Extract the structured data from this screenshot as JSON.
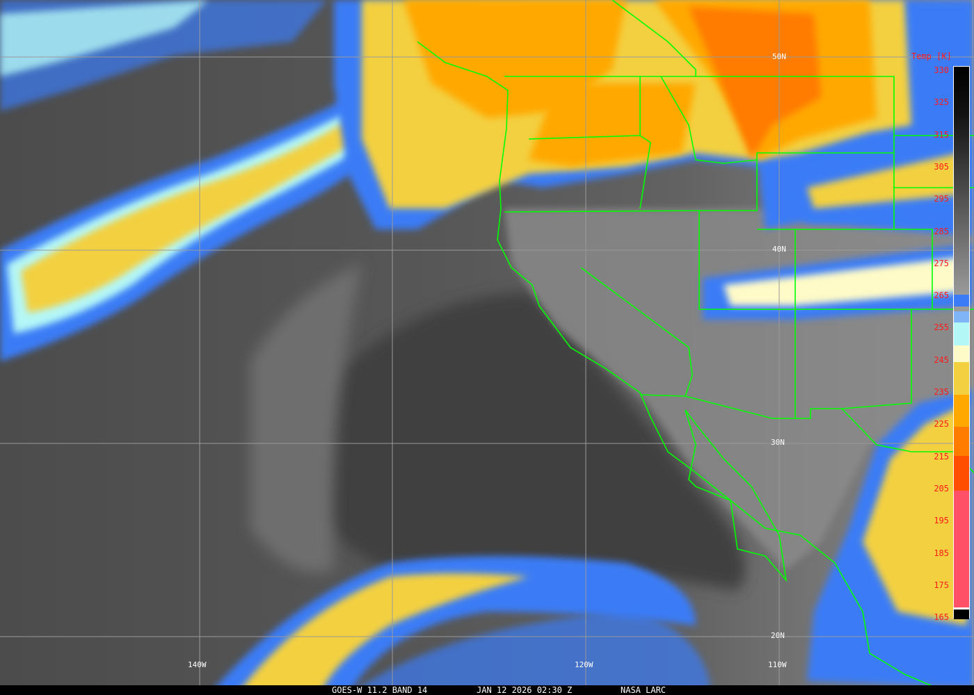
{
  "caption": {
    "satellite": "GOES-W 11.2 BAND 14",
    "datetime": "JAN 12 2026 02:30 Z",
    "source": "NASA LARC"
  },
  "grid_labels": {
    "lat": [
      "50N",
      "40N",
      "30N",
      "20N"
    ],
    "lon": [
      "140W",
      "120W",
      "110W"
    ]
  },
  "colorbar": {
    "units": "Temp [K]",
    "ticks": [
      "330",
      "325",
      "315",
      "305",
      "295",
      "285",
      "275",
      "265",
      "255",
      "245",
      "235",
      "225",
      "215",
      "205",
      "195",
      "185",
      "175",
      "165"
    ],
    "colors": {
      "blue": "#3b7cf6",
      "light_blue": "#7fb4f7",
      "cyan": "#b4f7f7",
      "pale_yellow": "#fffbc8",
      "yellow": "#f3d040",
      "orange": "#ffa800",
      "dark_orange": "#ff7c00",
      "red_orange": "#ff4e00",
      "pink": "#ff5068"
    }
  },
  "colors": {
    "borders": "#00ff00",
    "grid": "#9a9a9a",
    "tick_text": "#ff1a1a"
  }
}
